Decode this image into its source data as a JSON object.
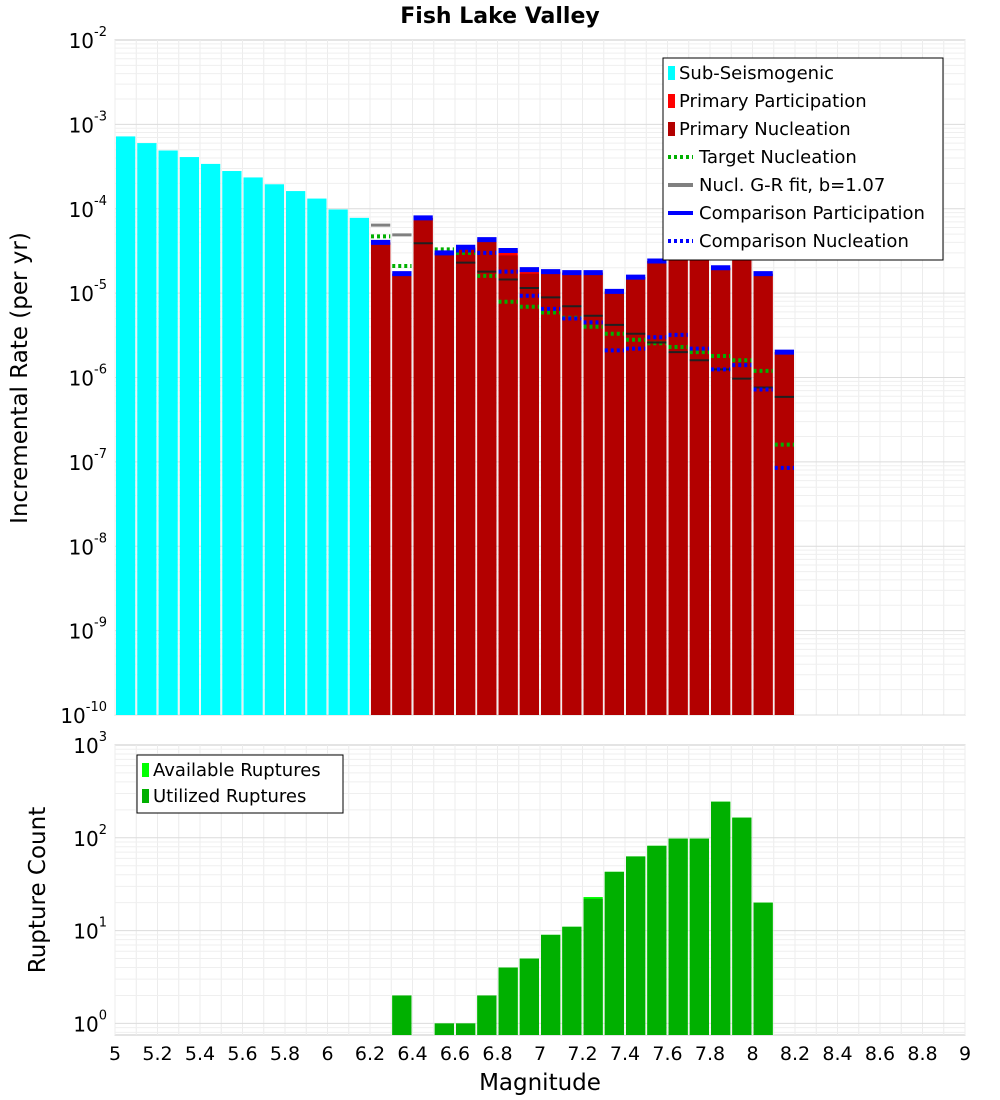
{
  "chart_data": [
    {
      "type": "bar",
      "title": "Fish Lake Valley",
      "xlabel": "",
      "ylabel": "Incremental Rate (per yr)",
      "yscale": "log",
      "ylim": [
        1e-10,
        0.01
      ],
      "xlim": [
        5,
        9
      ],
      "y_ticks": [
        {
          "base": "10",
          "exp": "-2"
        },
        {
          "base": "10",
          "exp": "-3"
        },
        {
          "base": "10",
          "exp": "-4"
        },
        {
          "base": "10",
          "exp": "-5"
        },
        {
          "base": "10",
          "exp": "-6"
        },
        {
          "base": "10",
          "exp": "-7"
        },
        {
          "base": "10",
          "exp": "-8"
        },
        {
          "base": "10",
          "exp": "-9"
        },
        {
          "base": "10",
          "exp": "-10"
        }
      ],
      "bin_width": 0.1,
      "sub_seismogenic": {
        "name": "Sub-Seismogenic",
        "color": "#00ffff",
        "x": [
          5.05,
          5.15,
          5.25,
          5.35,
          5.45,
          5.55,
          5.65,
          5.75,
          5.85,
          5.95,
          6.05,
          6.15
        ],
        "values": [
          0.00072,
          0.0006,
          0.00049,
          0.00041,
          0.00034,
          0.00028,
          0.000235,
          0.000195,
          0.000162,
          0.000132,
          9.8e-05,
          7.8e-05
        ]
      },
      "x": [
        6.25,
        6.35,
        6.45,
        6.55,
        6.65,
        6.75,
        6.85,
        6.95,
        7.05,
        7.15,
        7.25,
        7.35,
        7.45,
        7.55,
        7.65,
        7.75,
        7.85,
        7.95,
        8.05,
        8.15
      ],
      "series": [
        {
          "name": "Primary Participation",
          "color": "#ff0000",
          "style": "bar",
          "values": [
            4e-05,
            1.7e-05,
            7.8e-05,
            3e-05,
            3.5e-05,
            4.3e-05,
            3.2e-05,
            1.9e-05,
            1.8e-05,
            1.75e-05,
            1.75e-05,
            1.05e-05,
            1.55e-05,
            2.4e-05,
            2.8e-05,
            2.9e-05,
            2e-05,
            3.1e-05,
            1.7e-05,
            2e-06
          ]
        },
        {
          "name": "Primary Nucleation",
          "color": "#b30000",
          "style": "bar",
          "values": [
            4e-05,
            1.7e-05,
            7.8e-05,
            3e-05,
            3.4e-05,
            4.1e-05,
            2.8e-05,
            1.7e-05,
            1.8e-05,
            1.75e-05,
            1.75e-05,
            1.05e-05,
            1.55e-05,
            2.4e-05,
            2.8e-05,
            2.9e-05,
            2e-05,
            3.1e-05,
            1.7e-05,
            2e-06
          ]
        },
        {
          "name": "Target Nucleation",
          "color": "#00b000",
          "style": "dotted",
          "values": [
            4.7e-05,
            2.1e-05,
            null,
            3.3e-05,
            3e-05,
            1.6e-05,
            7.9e-06,
            6.9e-06,
            5.9e-06,
            5.1e-06,
            4e-06,
            3.3e-06,
            2.8e-06,
            2.55e-06,
            2.3e-06,
            2e-06,
            1.8e-06,
            1.6e-06,
            1.2e-06,
            1.6e-07
          ]
        },
        {
          "name": "Nucl. G-R fit, b=1.07",
          "color": "#808080",
          "style": "solid",
          "values": [
            6.4e-05,
            4.9e-05,
            null,
            null,
            null,
            null,
            null,
            null,
            null,
            null,
            null,
            null,
            null,
            null,
            null,
            null,
            null,
            null,
            null,
            null
          ]
        },
        {
          "name": "Nucl. G-R fit (black segments)",
          "color": "#202020",
          "style": "solid",
          "legend": false,
          "values": [
            null,
            null,
            3.9e-05,
            2.9e-05,
            2.3e-05,
            1.8e-05,
            1.45e-05,
            1.15e-05,
            8.9e-06,
            7e-06,
            5.4e-06,
            4.2e-06,
            3.3e-06,
            2.6e-06,
            2e-06,
            1.6e-06,
            1.25e-06,
            9.7e-07,
            7.6e-07,
            5.9e-07
          ]
        },
        {
          "name": "Comparison Participation",
          "color": "#0000ff",
          "style": "solid",
          "values": [
            4e-05,
            1.7e-05,
            7.8e-05,
            3e-05,
            3.5e-05,
            4.3e-05,
            3.2e-05,
            1.9e-05,
            1.8e-05,
            1.75e-05,
            1.75e-05,
            1.05e-05,
            1.55e-05,
            2.4e-05,
            2.8e-05,
            2.9e-05,
            2e-05,
            3.1e-05,
            1.7e-05,
            2e-06
          ]
        },
        {
          "name": "Comparison Nucleation",
          "color": "#0000ff",
          "style": "dotted",
          "values": [
            null,
            null,
            null,
            3e-05,
            3.2e-05,
            3e-05,
            1.8e-05,
            9.3e-06,
            6.5e-06,
            5e-06,
            4.5e-06,
            2.1e-06,
            2.2e-06,
            3e-06,
            3.2e-06,
            2.2e-06,
            1.25e-06,
            1.4e-06,
            7.2e-07,
            8.5e-08
          ]
        }
      ],
      "legend": [
        {
          "label": "Sub-Seismogenic",
          "swatch": "bar",
          "color": "#00ffff"
        },
        {
          "label": "Primary Participation",
          "swatch": "bar",
          "color": "#ff0000"
        },
        {
          "label": "Primary Nucleation",
          "swatch": "bar",
          "color": "#b30000"
        },
        {
          "label": "Target Nucleation",
          "swatch": "dotted",
          "color": "#00b000"
        },
        {
          "label": "Nucl. G-R fit, b=1.07",
          "swatch": "solid",
          "color": "#808080"
        },
        {
          "label": "Comparison Participation",
          "swatch": "solid",
          "color": "#0000ff"
        },
        {
          "label": "Comparison Nucleation",
          "swatch": "dotted",
          "color": "#0000ff"
        }
      ],
      "legend_position": "top-right",
      "grid": true
    },
    {
      "type": "bar",
      "title": "",
      "xlabel": "Magnitude",
      "ylabel": "Rupture Count",
      "yscale": "log",
      "ylim": [
        0.75,
        1000
      ],
      "xlim": [
        5,
        9
      ],
      "x_ticks": [
        "5",
        "5.2",
        "5.4",
        "5.6",
        "5.8",
        "6",
        "6.2",
        "6.4",
        "6.6",
        "6.8",
        "7",
        "7.2",
        "7.4",
        "7.6",
        "7.8",
        "8",
        "8.2",
        "8.4",
        "8.6",
        "8.8",
        "9"
      ],
      "y_ticks": [
        {
          "base": "10",
          "exp": "3"
        },
        {
          "base": "10",
          "exp": "2"
        },
        {
          "base": "10",
          "exp": "1"
        },
        {
          "base": "10",
          "exp": "0"
        }
      ],
      "x": [
        6.25,
        6.35,
        6.45,
        6.55,
        6.65,
        6.75,
        6.85,
        6.95,
        7.05,
        7.15,
        7.25,
        7.35,
        7.45,
        7.55,
        7.65,
        7.75,
        7.85,
        7.95,
        8.05
      ],
      "series": [
        {
          "name": "Available Ruptures",
          "color": "#00ff00",
          "values": [
            null,
            2,
            null,
            1,
            1,
            2,
            4,
            5,
            9,
            11,
            23,
            43,
            63,
            82,
            98,
            98,
            245,
            165,
            20
          ]
        },
        {
          "name": "Utilized Ruptures",
          "color": "#00b000",
          "values": [
            null,
            2,
            null,
            1,
            1,
            2,
            4,
            5,
            9,
            11,
            22,
            43,
            63,
            82,
            98,
            98,
            245,
            165,
            20
          ]
        }
      ],
      "legend": [
        {
          "label": "Available Ruptures",
          "swatch": "bar",
          "color": "#00ff00"
        },
        {
          "label": "Utilized Ruptures",
          "swatch": "bar",
          "color": "#00b000"
        }
      ],
      "legend_position": "top-left",
      "grid": true
    }
  ]
}
